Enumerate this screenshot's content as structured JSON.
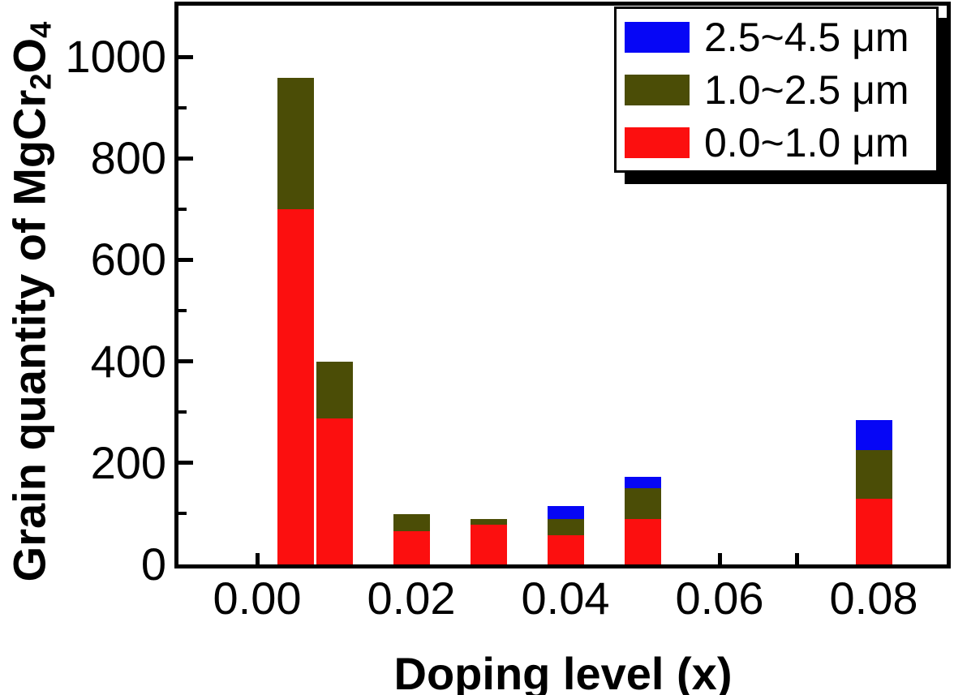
{
  "figure": {
    "x_axis_title": "Doping level (x)",
    "y_axis_title_plain": "Grain quantity of MgCr2O4",
    "y_axis_title_parts": [
      {
        "text": "Grain quantity of MgCr",
        "subscript": false
      },
      {
        "text": "2",
        "subscript": true
      },
      {
        "text": "O",
        "subscript": false
      },
      {
        "text": "4",
        "subscript": true
      }
    ]
  },
  "legend": {
    "position": "top-right",
    "items": [
      {
        "label": "2.5~4.5 μm",
        "color": "#0606f6",
        "swatch": "blue-swatch"
      },
      {
        "label": "1.0~2.5 μm",
        "color": "#4b4d06",
        "swatch": "olive-swatch"
      },
      {
        "label": "0.0~1.0 μm",
        "color": "#fc0f0f",
        "swatch": "red-swatch"
      }
    ]
  },
  "chart_data": {
    "type": "bar",
    "stacked": true,
    "title": "",
    "xlabel": "Doping level (x)",
    "ylabel": "Grain quantity of MgCr2O4",
    "x": [
      0.005,
      0.01,
      0.02,
      0.03,
      0.04,
      0.05,
      0.08
    ],
    "series": [
      {
        "name": "0.0~1.0 μm",
        "color": "#fc0f0f",
        "values": [
          700,
          288,
          65,
          78,
          58,
          90,
          130
        ]
      },
      {
        "name": "1.0~2.5 μm",
        "color": "#4b4d06",
        "values": [
          258,
          112,
          34,
          12,
          32,
          60,
          95
        ]
      },
      {
        "name": "2.5~4.5 μm",
        "color": "#0606f6",
        "values": [
          0,
          0,
          0,
          0,
          25,
          23,
          60
        ]
      }
    ],
    "stack_totals": [
      958,
      400,
      99,
      90,
      115,
      173,
      285
    ],
    "xlim": [
      -0.0103,
      0.0895
    ],
    "ylim": [
      0,
      1100
    ],
    "yticks": [
      0,
      200,
      400,
      600,
      800,
      1000
    ],
    "yticks_minor": [
      100,
      300,
      500,
      700,
      900
    ],
    "xticks": [
      0,
      0.02,
      0.04,
      0.06,
      0.08
    ],
    "xtick_labels": [
      "0.00",
      "0.02",
      "0.04",
      "0.06",
      "0.08"
    ],
    "xticks_minor": [
      0.01,
      0.03,
      0.05,
      0.07
    ],
    "grid": false,
    "legend_position": "top-right"
  }
}
